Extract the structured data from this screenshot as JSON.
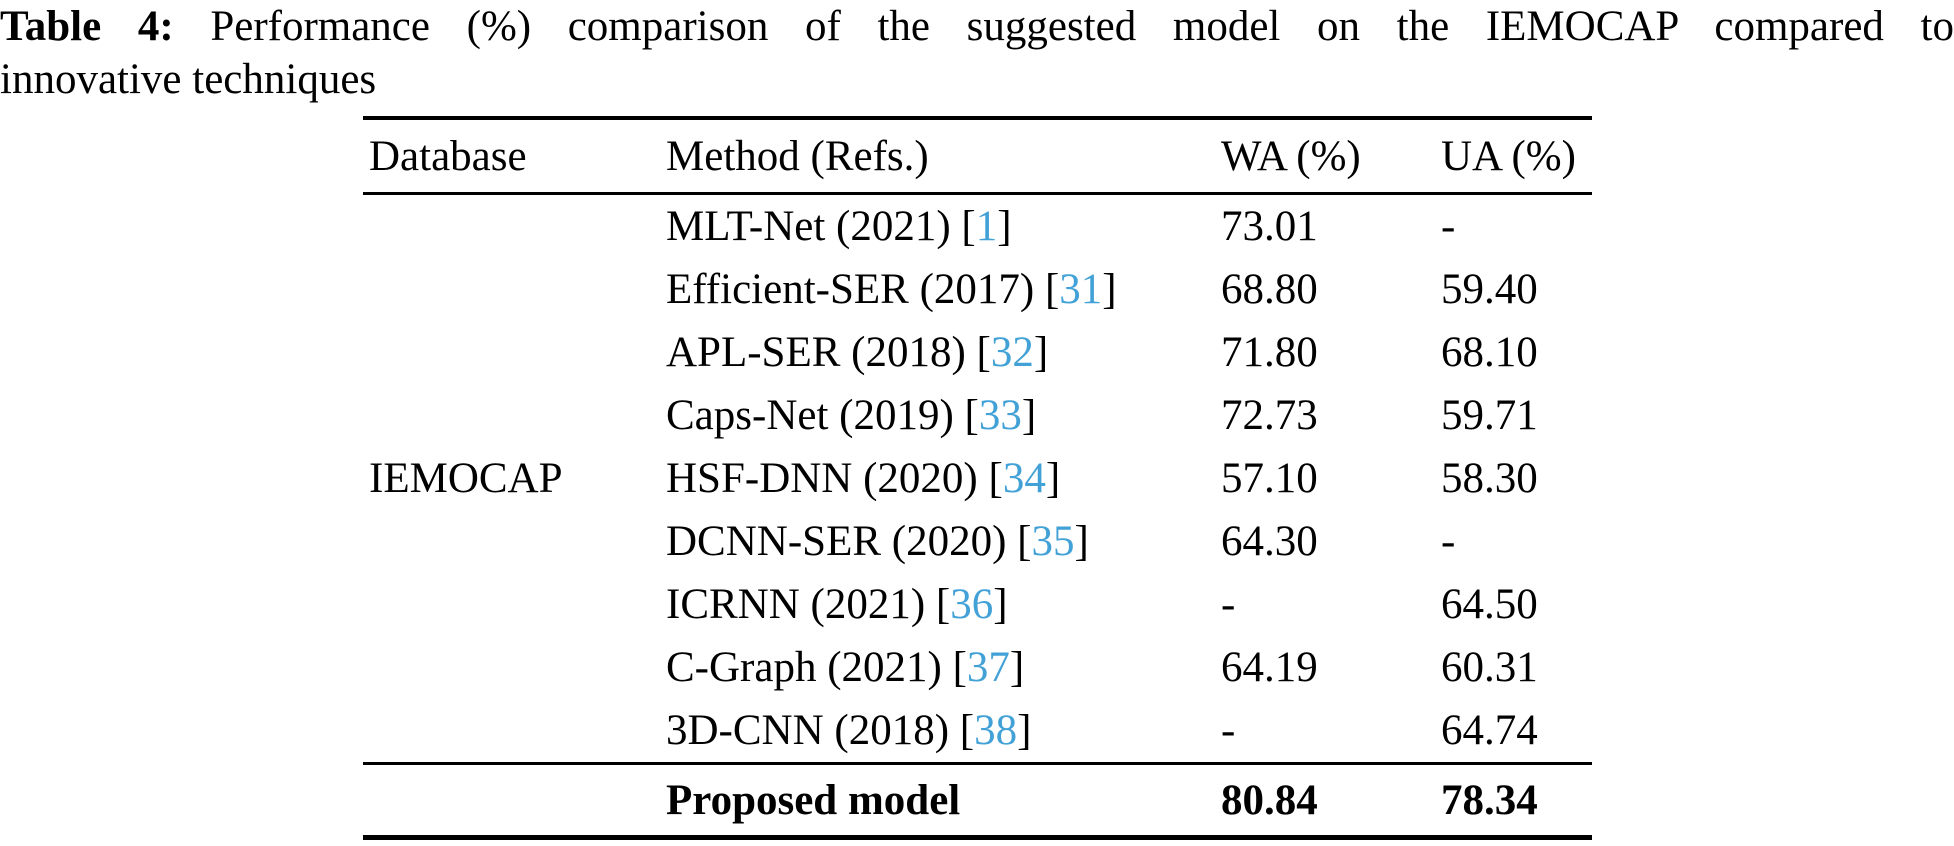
{
  "caption": {
    "label": "Table 4:",
    "line1_rest": "Performance (%) comparison of the suggested model on the IEMOCAP compared to",
    "line2": "innovative techniques"
  },
  "table": {
    "columns": [
      "Database",
      "Method (Refs.)",
      "WA (%)",
      "UA (%)"
    ],
    "database": "IEMOCAP",
    "rows": [
      {
        "method": "MLT-Net (2021)",
        "ref": "1",
        "wa": "73.01",
        "ua": "-"
      },
      {
        "method": "Efficient-SER (2017)",
        "ref": "31",
        "wa": "68.80",
        "ua": "59.40"
      },
      {
        "method": "APL-SER (2018)",
        "ref": "32",
        "wa": "71.80",
        "ua": "68.10"
      },
      {
        "method": "Caps-Net (2019)",
        "ref": "33",
        "wa": "72.73",
        "ua": "59.71"
      },
      {
        "method": "HSF-DNN (2020)",
        "ref": "34",
        "wa": "57.10",
        "ua": "58.30"
      },
      {
        "method": "DCNN-SER (2020)",
        "ref": "35",
        "wa": "64.30",
        "ua": "-"
      },
      {
        "method": "ICRNN (2021)",
        "ref": "36",
        "wa": "-",
        "ua": "64.50"
      },
      {
        "method": "C-Graph (2021)",
        "ref": "37",
        "wa": "64.19",
        "ua": "60.31"
      },
      {
        "method": "3D-CNN (2018)",
        "ref": "38",
        "wa": "-",
        "ua": "64.74"
      }
    ],
    "footer": {
      "database": "",
      "method": "Proposed model",
      "wa": "80.84",
      "ua": "78.34"
    }
  },
  "colors": {
    "reference_blue": "#42a1d6",
    "text": "#000000"
  }
}
